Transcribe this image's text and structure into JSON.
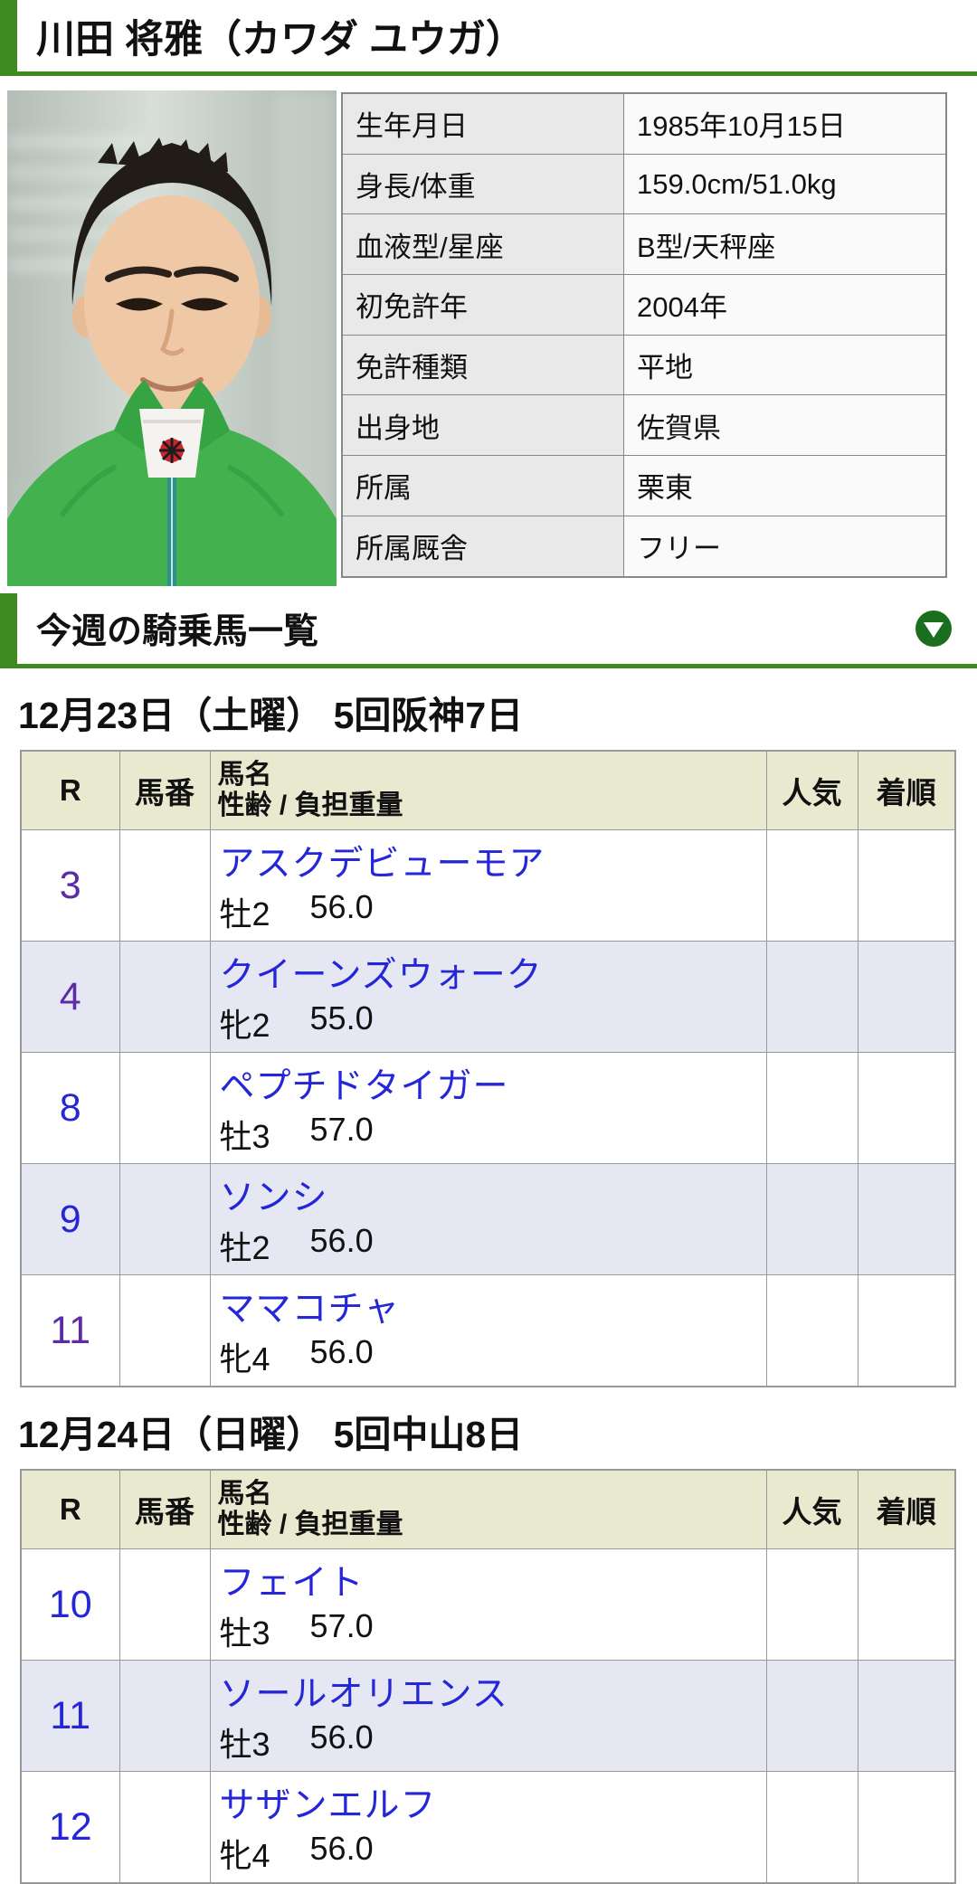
{
  "page": {
    "title": "川田 将雅（カワダ ユウガ）"
  },
  "profile": {
    "photo": "jockey-portrait-photo",
    "rows": [
      {
        "label": "生年月日",
        "value": "1985年10月15日"
      },
      {
        "label": "身長/体重",
        "value": "159.0cm/51.0kg"
      },
      {
        "label": "血液型/星座",
        "value": "B型/天秤座"
      },
      {
        "label": "初免許年",
        "value": "2004年"
      },
      {
        "label": "免許種類",
        "value": "平地"
      },
      {
        "label": "出身地",
        "value": "佐賀県"
      },
      {
        "label": "所属",
        "value": "栗東"
      },
      {
        "label": "所属厩舎",
        "value": "フリー"
      }
    ]
  },
  "section": {
    "title": "今週の騎乗馬一覧",
    "toggle_icon": "circle-down-arrow"
  },
  "table_columns": {
    "r": "R",
    "horse_no": "馬番",
    "name_top": "馬名",
    "name_bottom": "性齢 / 負担重量",
    "popularity": "人気",
    "result": "着順"
  },
  "race_days": [
    {
      "date_title": "12月23日（土曜） 5回阪神7日",
      "rows": [
        {
          "r": "3",
          "r_visited": true,
          "horse": "アスクデビューモア",
          "sex_age": "牡2",
          "weight": "56.0",
          "horse_no": "",
          "popularity": "",
          "result": ""
        },
        {
          "r": "4",
          "r_visited": true,
          "horse": "クイーンズウォーク",
          "sex_age": "牝2",
          "weight": "55.0",
          "horse_no": "",
          "popularity": "",
          "result": ""
        },
        {
          "r": "8",
          "r_visited": false,
          "horse": "ペプチドタイガー",
          "sex_age": "牡3",
          "weight": "57.0",
          "horse_no": "",
          "popularity": "",
          "result": ""
        },
        {
          "r": "9",
          "r_visited": false,
          "horse": "ソンシ",
          "sex_age": "牡2",
          "weight": "56.0",
          "horse_no": "",
          "popularity": "",
          "result": ""
        },
        {
          "r": "11",
          "r_visited": true,
          "horse": "ママコチャ",
          "sex_age": "牝4",
          "weight": "56.0",
          "horse_no": "",
          "popularity": "",
          "result": ""
        }
      ]
    },
    {
      "date_title": "12月24日（日曜） 5回中山8日",
      "rows": [
        {
          "r": "10",
          "r_visited": false,
          "horse": "フェイト",
          "sex_age": "牡3",
          "weight": "57.0",
          "horse_no": "",
          "popularity": "",
          "result": ""
        },
        {
          "r": "11",
          "r_visited": false,
          "horse": "ソールオリエンス",
          "sex_age": "牡3",
          "weight": "56.0",
          "horse_no": "",
          "popularity": "",
          "result": ""
        },
        {
          "r": "12",
          "r_visited": false,
          "horse": "サザンエルフ",
          "sex_age": "牝4",
          "weight": "56.0",
          "horse_no": "",
          "popularity": "",
          "result": ""
        }
      ]
    }
  ],
  "colors": {
    "accent_green": "#3d8a1e",
    "toggle_green": "#1a6e1e",
    "link_blue": "#2626d9",
    "visited_purple": "#5c2ca6",
    "header_beige": "#e9e9cf",
    "alt_row_lavender": "#e5e8f3",
    "label_cell_gray": "#e9e9e9",
    "border_gray": "#999999"
  }
}
